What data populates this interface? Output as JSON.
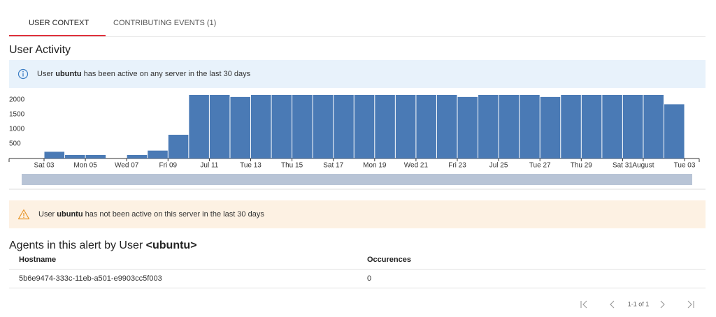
{
  "tabs": [
    "USER CONTEXT",
    "CONTRIBUTING EVENTS (1)"
  ],
  "section_title": "User Activity",
  "info": {
    "prefix": "User",
    "user": "ubuntu",
    "suffix": "has been active on any server in the last 30 days"
  },
  "chart_data": {
    "type": "bar",
    "color": "#4a7ab5",
    "categories": [
      "Sat 03",
      null,
      "Mon 05",
      null,
      "Wed 07",
      null,
      "Fri 09",
      null,
      "Jul 11",
      null,
      "Tue 13",
      null,
      "Thu 15",
      null,
      "Sat 17",
      null,
      "Mon 19",
      null,
      "Wed 21",
      null,
      "Fri 23",
      null,
      "Jul 25",
      null,
      "Tue 27",
      null,
      "Thu 29",
      null,
      "Sat 31",
      "August",
      null,
      "Tue 03"
    ],
    "values": [
      230,
      120,
      120,
      0,
      120,
      270,
      810,
      2170,
      2170,
      2100,
      2170,
      2170,
      2170,
      2170,
      2170,
      2170,
      2170,
      2170,
      2170,
      2170,
      2100,
      2170,
      2170,
      2170,
      2100,
      2170,
      2170,
      2170,
      2170,
      2170,
      1850,
      null
    ],
    "ylim": [
      0,
      2240
    ],
    "yticks": [
      500,
      1000,
      1500,
      2000
    ],
    "grid": false
  },
  "warning": {
    "prefix": "User",
    "user": "ubuntu",
    "suffix": "has not been active on this server in the last 30 days"
  },
  "agents_title": {
    "prefix": "Agents in this alert by User",
    "user": "<ubuntu>"
  },
  "table": {
    "columns": [
      "Hostname",
      "Occurences"
    ],
    "rows": [
      [
        "5b6e9474-333c-11eb-a501-e9903cc5f003",
        "0"
      ]
    ]
  },
  "pagination": "1-1 of 1"
}
